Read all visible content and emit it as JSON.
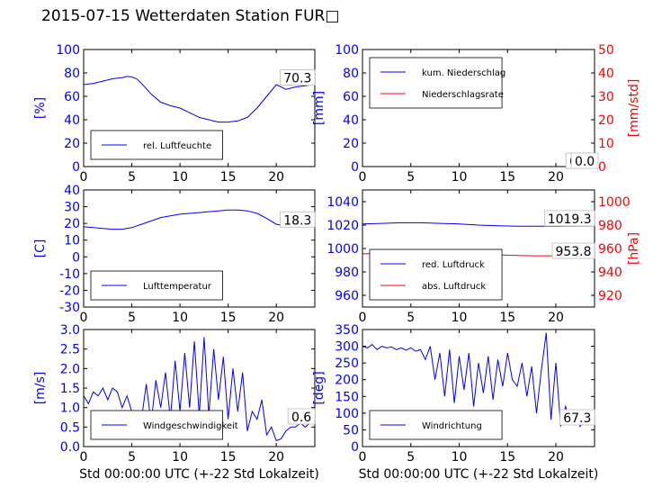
{
  "title": "2015-07-15 Wetterdaten Station FUR□",
  "xlabel": "Std 00:00:00 UTC (+-22 Std Lokalzeit)",
  "colors": {
    "left": "#0000ff",
    "right": "#ff0000",
    "axis": "#000000"
  },
  "chart_data": [
    {
      "type": "line",
      "panel": "top-left",
      "ylabel": "[%]",
      "xlim": [
        0,
        24
      ],
      "ylim": [
        0,
        100
      ],
      "xticks": [
        0,
        5,
        10,
        15,
        20
      ],
      "yticks": [
        0,
        20,
        40,
        60,
        80,
        100
      ],
      "legend_placement": "lower-left",
      "last_value_label": "70.3",
      "series": [
        {
          "name": "rel. Luftfeuchte",
          "color": "#0000ff",
          "x": [
            0,
            1,
            2,
            3,
            4,
            4.5,
            5,
            5.5,
            6,
            7,
            8,
            9,
            10,
            11,
            12,
            13,
            14,
            15,
            16,
            17,
            18,
            19,
            20,
            21,
            22,
            23,
            24
          ],
          "y": [
            70,
            71,
            73,
            75,
            76,
            77,
            76.5,
            75,
            71,
            62,
            55,
            52,
            50,
            46,
            42,
            40,
            38,
            38,
            39,
            42,
            50,
            60,
            70,
            66,
            68,
            69,
            70.3
          ]
        }
      ]
    },
    {
      "type": "line",
      "panel": "top-right",
      "ylabel": "[mm]",
      "ylabel_right": "[mm/std]",
      "xlim": [
        0,
        24
      ],
      "ylim": [
        0,
        100
      ],
      "ylim_right": [
        0,
        50
      ],
      "xticks": [
        0,
        5,
        10,
        15,
        20
      ],
      "yticks": [
        0,
        20,
        40,
        60,
        80,
        100
      ],
      "yticks_right": [
        0,
        10,
        20,
        30,
        40,
        50
      ],
      "legend_placement": "upper-left",
      "last_value_labels": [
        "0.0",
        "0.0"
      ],
      "series": [
        {
          "name": "kum. Niederschlag",
          "color": "#0000ff",
          "x": [
            0,
            24
          ],
          "y": [
            0,
            0
          ]
        },
        {
          "name": "Niederschlagsrate",
          "color": "#ff0000",
          "axis": "right",
          "x": [
            0,
            24
          ],
          "y": [
            0,
            0
          ]
        }
      ]
    },
    {
      "type": "line",
      "panel": "middle-left",
      "ylabel": "[C]",
      "xlim": [
        0,
        24
      ],
      "ylim": [
        -30,
        40
      ],
      "xticks": [
        0,
        5,
        10,
        15,
        20
      ],
      "yticks": [
        -30,
        -20,
        -10,
        0,
        10,
        20,
        30,
        40
      ],
      "legend_placement": "lower-left",
      "last_value_label": "18.3",
      "series": [
        {
          "name": "Lufttemperatur",
          "color": "#0000ff",
          "x": [
            0,
            1,
            2,
            3,
            4,
            5,
            6,
            7,
            8,
            9,
            10,
            11,
            12,
            13,
            14,
            15,
            16,
            17,
            18,
            19,
            20,
            21,
            22,
            23,
            24
          ],
          "y": [
            18,
            17.5,
            17,
            16.5,
            16.5,
            17.5,
            19.5,
            21.5,
            23.5,
            24.5,
            25.5,
            26,
            26.5,
            27,
            27.5,
            28,
            28,
            27.5,
            26,
            23,
            19.5,
            18.5,
            18.3,
            18.3,
            18.3
          ]
        }
      ]
    },
    {
      "type": "line",
      "panel": "middle-right",
      "ylabel_right": "[hPa]",
      "xlim": [
        0,
        24
      ],
      "ylim": [
        950,
        1050
      ],
      "ylim_right": [
        910,
        1010
      ],
      "xticks": [
        0,
        5,
        10,
        15,
        20
      ],
      "yticks": [
        960,
        980,
        1000,
        1020,
        1040
      ],
      "yticks_right": [
        920,
        940,
        960,
        980,
        1000
      ],
      "legend_placement": "lower-left",
      "last_value_labels": [
        "1019.3",
        "953.8"
      ],
      "series": [
        {
          "name": "red. Luftdruck",
          "color": "#0000ff",
          "x": [
            0,
            2,
            4,
            6,
            8,
            10,
            12,
            14,
            16,
            18,
            20,
            22,
            24
          ],
          "y": [
            1021,
            1021.5,
            1022,
            1022,
            1021.5,
            1021,
            1020,
            1019.5,
            1019,
            1019,
            1019,
            1019.2,
            1019.3
          ]
        },
        {
          "name": "abs. Luftdruck",
          "color": "#ff0000",
          "axis": "right",
          "x": [
            0,
            2,
            4,
            6,
            8,
            10,
            12,
            14,
            16,
            18,
            20,
            22,
            24
          ],
          "y": [
            955.5,
            956,
            956.5,
            956.5,
            956.5,
            956,
            955,
            954.5,
            954,
            953.8,
            953.8,
            953.8,
            953.8
          ]
        }
      ]
    },
    {
      "type": "line",
      "panel": "bottom-left",
      "ylabel": "[m/s]",
      "xlim": [
        0,
        24
      ],
      "ylim": [
        0,
        3
      ],
      "xticks": [
        0,
        5,
        10,
        15,
        20
      ],
      "yticks": [
        0.0,
        0.5,
        1.0,
        1.5,
        2.0,
        2.5,
        3.0
      ],
      "legend_placement": "lower-left",
      "last_value_label": "0.6",
      "series": [
        {
          "name": "Windgeschwindigkeit",
          "color": "#0000ff",
          "x": [
            0,
            0.5,
            1,
            1.5,
            2,
            2.5,
            3,
            3.5,
            4,
            4.5,
            5,
            5.5,
            6,
            6.5,
            7,
            7.5,
            8,
            8.5,
            9,
            9.5,
            10,
            10.5,
            11,
            11.5,
            12,
            12.5,
            13,
            13.5,
            14,
            14.5,
            15,
            15.5,
            16,
            16.5,
            17,
            17.5,
            18,
            18.5,
            19,
            19.5,
            20,
            20.5,
            21,
            21.5,
            22,
            22.5,
            23,
            23.5,
            24
          ],
          "y": [
            1.3,
            1.1,
            1.4,
            1.3,
            1.5,
            1.2,
            1.5,
            1.4,
            1.0,
            1.3,
            0.9,
            0.9,
            0.7,
            1.6,
            0.6,
            1.7,
            1.0,
            1.9,
            0.7,
            2.2,
            0.9,
            2.4,
            1.0,
            2.7,
            0.8,
            2.8,
            0.8,
            2.5,
            1.2,
            2.3,
            0.7,
            2.0,
            0.9,
            1.9,
            0.4,
            0.9,
            0.7,
            1.2,
            0.3,
            0.5,
            0.15,
            0.2,
            0.4,
            0.5,
            0.5,
            0.6,
            0.5,
            0.6,
            0.6
          ]
        }
      ]
    },
    {
      "type": "line",
      "panel": "bottom-right",
      "ylabel": "[deg]",
      "xlim": [
        0,
        24
      ],
      "ylim": [
        0,
        350
      ],
      "xticks": [
        0,
        5,
        10,
        15,
        20
      ],
      "yticks": [
        0,
        50,
        100,
        150,
        200,
        250,
        300,
        350
      ],
      "legend_placement": "lower-left",
      "last_value_label": "67.3",
      "series": [
        {
          "name": "Windrichtung",
          "color": "#0000ff",
          "x": [
            0,
            0.5,
            1,
            1.5,
            2,
            2.5,
            3,
            3.5,
            4,
            4.5,
            5,
            5.5,
            6,
            6.5,
            7,
            7.5,
            8,
            8.5,
            9,
            9.5,
            10,
            10.5,
            11,
            11.5,
            12,
            12.5,
            13,
            13.5,
            14,
            14.5,
            15,
            15.5,
            16,
            16.5,
            17,
            17.5,
            18,
            18.5,
            19,
            19.5,
            20,
            20.5,
            21,
            21.5,
            22,
            22.5,
            23,
            23.5,
            24
          ],
          "y": [
            300,
            295,
            305,
            290,
            300,
            295,
            298,
            290,
            295,
            288,
            295,
            285,
            290,
            260,
            300,
            200,
            280,
            150,
            290,
            130,
            270,
            170,
            280,
            120,
            250,
            160,
            270,
            140,
            260,
            180,
            280,
            200,
            180,
            250,
            150,
            240,
            100,
            230,
            340,
            80,
            250,
            60,
            120,
            70,
            100,
            60,
            80,
            70,
            67.3
          ]
        }
      ]
    }
  ]
}
